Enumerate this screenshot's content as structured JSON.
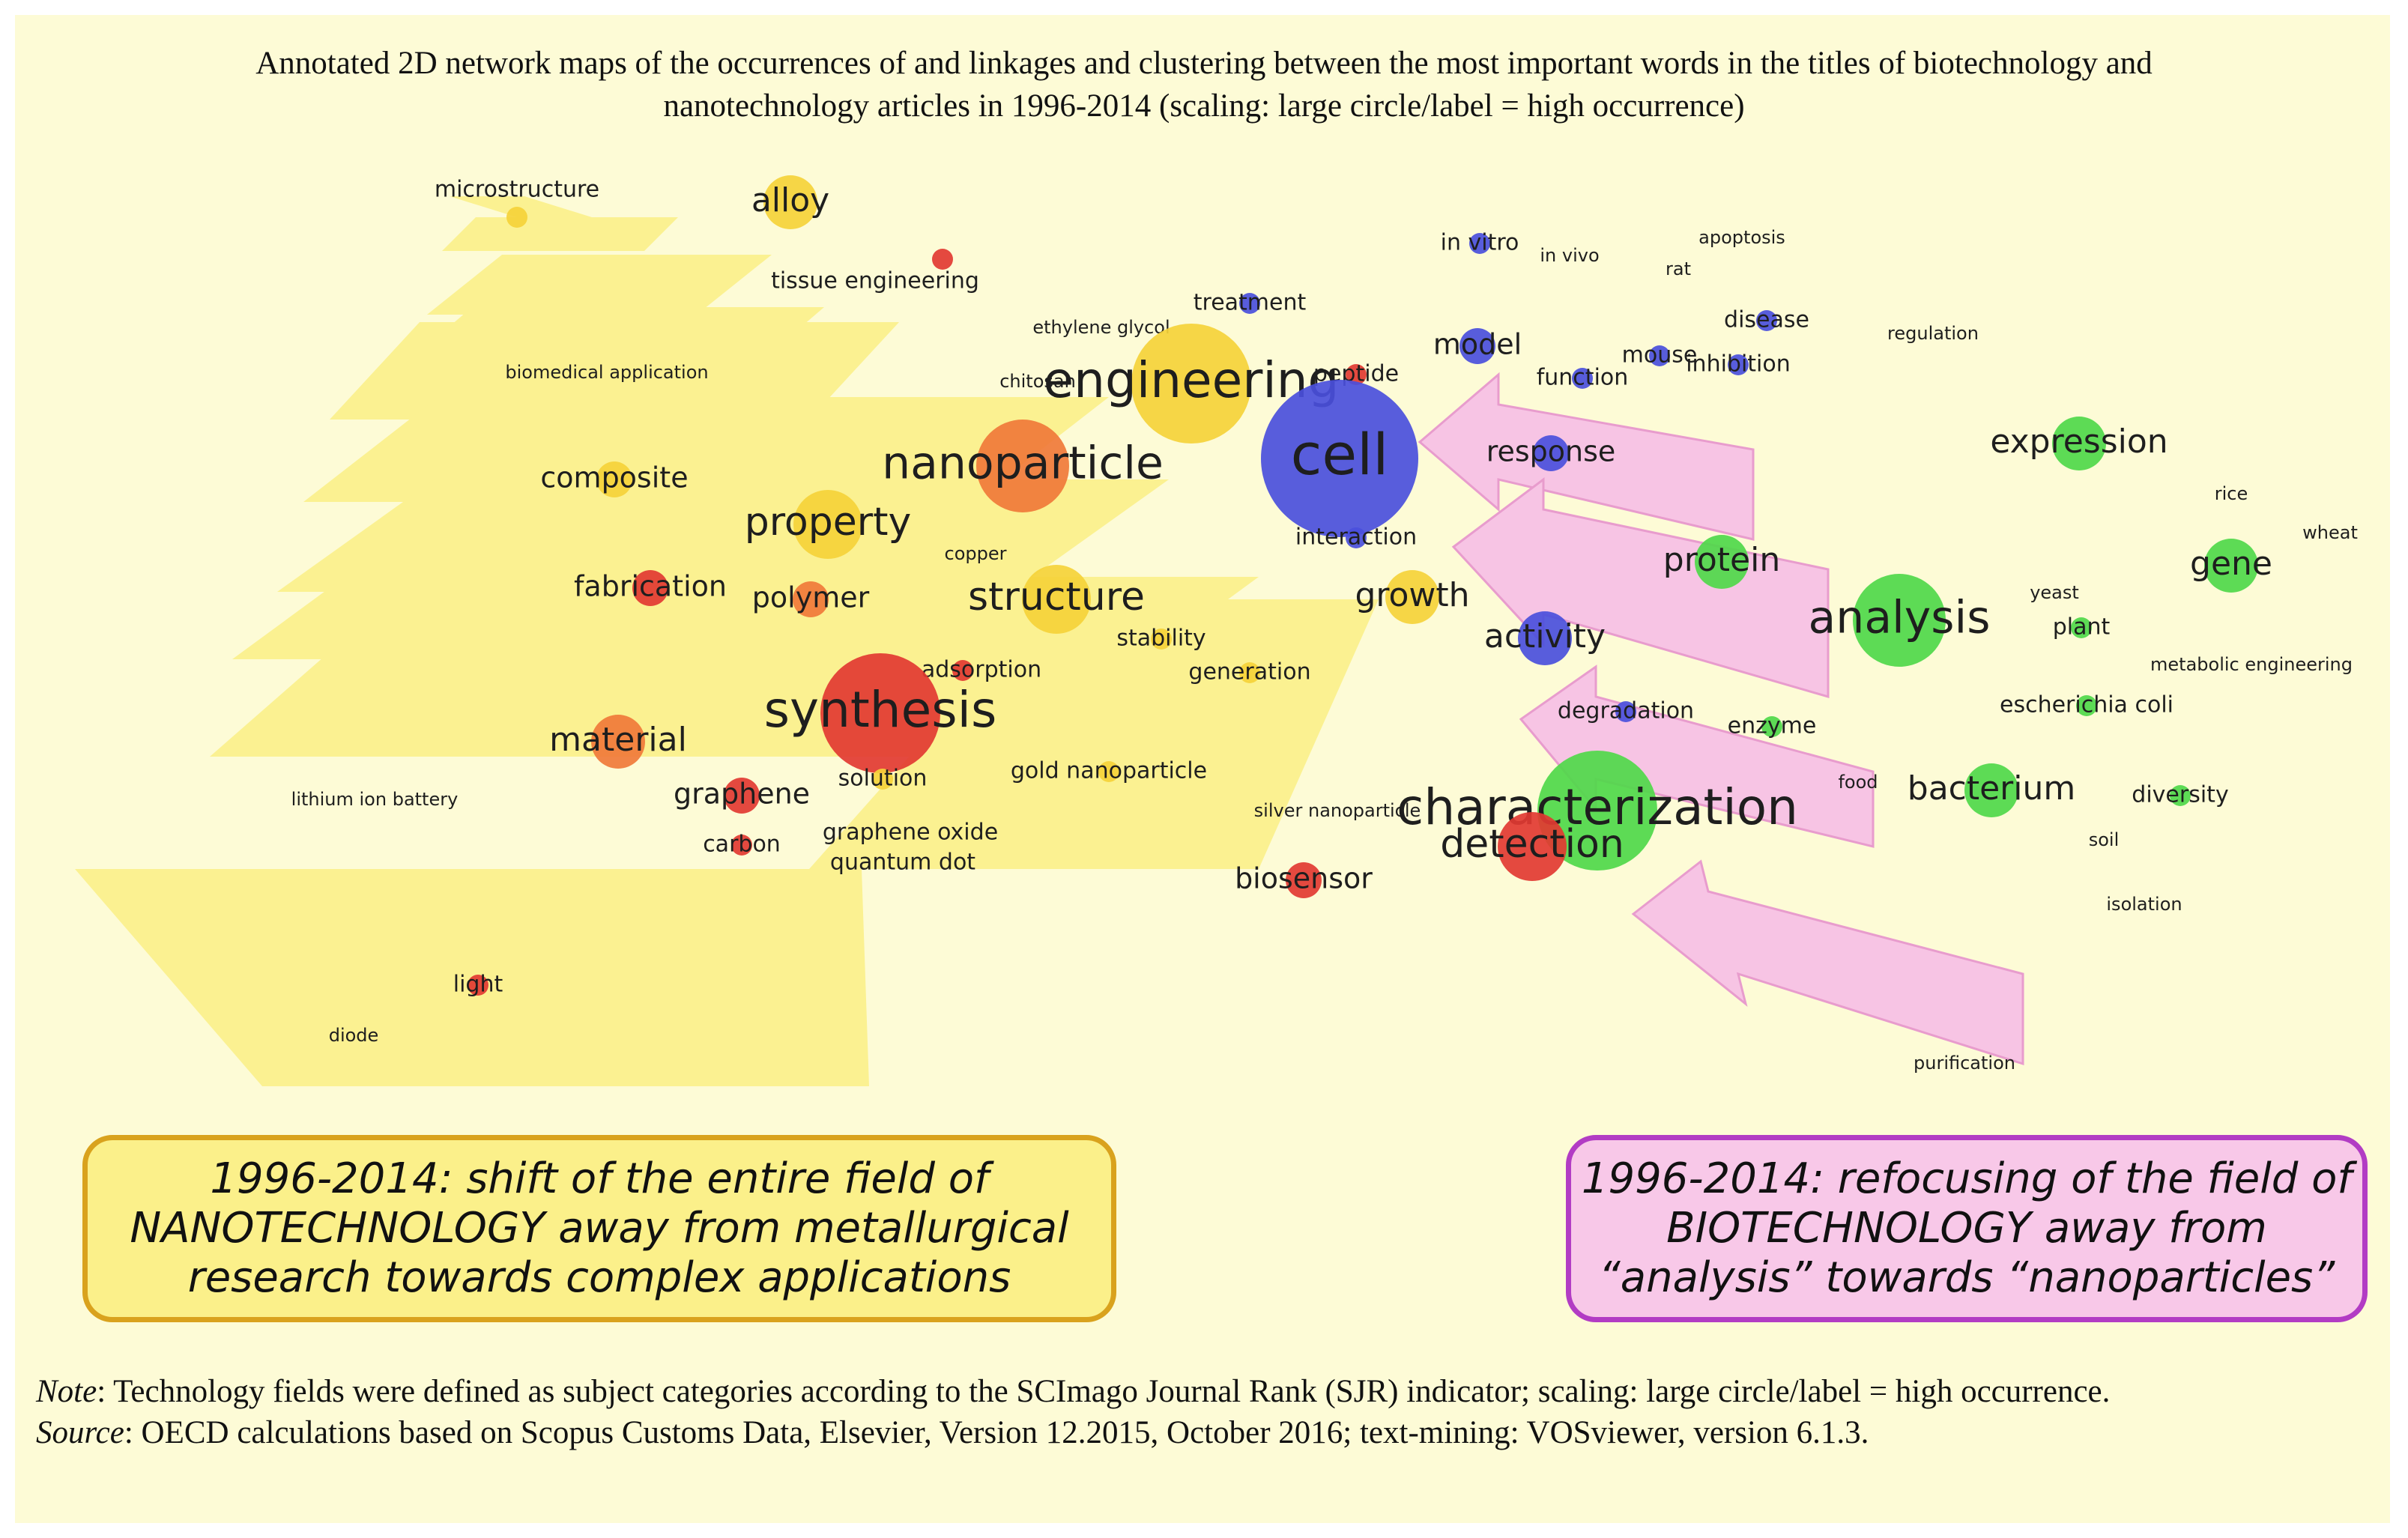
{
  "title": {
    "line1": "Annotated 2D network maps of the occurrences of and linkages and clustering between the most important words in the titles of biotechnology and",
    "line2": "nanotechnology articles in 1996-2014 (scaling: large circle/label = high occurrence)"
  },
  "colors": {
    "red": "#e23a32",
    "orange": "#f07a3a",
    "yellow": "#f5d23a",
    "green": "#4fd84a",
    "blue": "#4a4fdc",
    "magenta": "#b020a0",
    "yellow_band": "#fbf08a",
    "pink_arrow": "#f7c4e4"
  },
  "network": {
    "nodes": [
      {
        "label": "microstructure",
        "color": "yellow",
        "size": 1
      },
      {
        "label": "alloy",
        "color": "yellow",
        "size": 3
      },
      {
        "label": "tissue engineering",
        "color": "red",
        "size": 1
      },
      {
        "label": "biomedical application",
        "color": "yellow",
        "size": 0
      },
      {
        "label": "composite",
        "color": "yellow",
        "size": 2
      },
      {
        "label": "fabrication",
        "color": "red",
        "size": 2
      },
      {
        "label": "property",
        "color": "yellow",
        "size": 4
      },
      {
        "label": "polymer",
        "color": "orange",
        "size": 2
      },
      {
        "label": "copper",
        "color": "yellow",
        "size": 0
      },
      {
        "label": "nanoparticle",
        "color": "orange",
        "size": 5
      },
      {
        "label": "ethylene glycol",
        "color": "yellow",
        "size": 0
      },
      {
        "label": "chitosan",
        "color": "yellow",
        "size": 0
      },
      {
        "label": "engineering",
        "color": "yellow",
        "size": 6
      },
      {
        "label": "treatment",
        "color": "blue",
        "size": 1
      },
      {
        "label": "peptide",
        "color": "red",
        "size": 1
      },
      {
        "label": "cell",
        "color": "blue",
        "size": 7
      },
      {
        "label": "interaction",
        "color": "blue",
        "size": 1
      },
      {
        "label": "structure",
        "color": "yellow",
        "size": 4
      },
      {
        "label": "stability",
        "color": "yellow",
        "size": 1
      },
      {
        "label": "generation",
        "color": "yellow",
        "size": 1
      },
      {
        "label": "adsorption",
        "color": "red",
        "size": 1
      },
      {
        "label": "synthesis",
        "color": "red",
        "size": 6
      },
      {
        "label": "solution",
        "color": "yellow",
        "size": 1
      },
      {
        "label": "material",
        "color": "orange",
        "size": 3
      },
      {
        "label": "graphene",
        "color": "red",
        "size": 2
      },
      {
        "label": "carbon",
        "color": "red",
        "size": 1
      },
      {
        "label": "lithium ion battery",
        "color": "yellow",
        "size": 0
      },
      {
        "label": "graphene oxide",
        "color": "yellow",
        "size": 1
      },
      {
        "label": "quantum dot",
        "color": "yellow",
        "size": 1
      },
      {
        "label": "gold nanoparticle",
        "color": "yellow",
        "size": 1
      },
      {
        "label": "growth",
        "color": "yellow",
        "size": 3
      },
      {
        "label": "light",
        "color": "red",
        "size": 1
      },
      {
        "label": "diode",
        "color": "yellow",
        "size": 0
      },
      {
        "label": "in vitro",
        "color": "blue",
        "size": 1
      },
      {
        "label": "in vivo",
        "color": "blue",
        "size": 0
      },
      {
        "label": "apoptosis",
        "color": "blue",
        "size": 0
      },
      {
        "label": "rat",
        "color": "blue",
        "size": 0
      },
      {
        "label": "disease",
        "color": "blue",
        "size": 1
      },
      {
        "label": "regulation",
        "color": "green",
        "size": 0
      },
      {
        "label": "model",
        "color": "blue",
        "size": 2
      },
      {
        "label": "function",
        "color": "blue",
        "size": 1
      },
      {
        "label": "mouse",
        "color": "blue",
        "size": 1
      },
      {
        "label": "inhibition",
        "color": "blue",
        "size": 1
      },
      {
        "label": "response",
        "color": "blue",
        "size": 2
      },
      {
        "label": "expression",
        "color": "green",
        "size": 3
      },
      {
        "label": "rice",
        "color": "green",
        "size": 0
      },
      {
        "label": "wheat",
        "color": "green",
        "size": 0
      },
      {
        "label": "gene",
        "color": "green",
        "size": 3
      },
      {
        "label": "protein",
        "color": "green",
        "size": 3
      },
      {
        "label": "analysis",
        "color": "green",
        "size": 5
      },
      {
        "label": "yeast",
        "color": "green",
        "size": 0
      },
      {
        "label": "plant",
        "color": "green",
        "size": 1
      },
      {
        "label": "metabolic engineering",
        "color": "green",
        "size": 0
      },
      {
        "label": "activity",
        "color": "blue",
        "size": 3
      },
      {
        "label": "degradation",
        "color": "blue",
        "size": 1
      },
      {
        "label": "enzyme",
        "color": "green",
        "size": 1
      },
      {
        "label": "escherichia coli",
        "color": "green",
        "size": 1
      },
      {
        "label": "food",
        "color": "green",
        "size": 0
      },
      {
        "label": "bacterium",
        "color": "green",
        "size": 3
      },
      {
        "label": "diversity",
        "color": "green",
        "size": 1
      },
      {
        "label": "soil",
        "color": "green",
        "size": 0
      },
      {
        "label": "isolation",
        "color": "green",
        "size": 0
      },
      {
        "label": "silver nanoparticle",
        "color": "red",
        "size": 0
      },
      {
        "label": "characterization",
        "color": "green",
        "size": 6
      },
      {
        "label": "detection",
        "color": "red",
        "size": 4
      },
      {
        "label": "biosensor",
        "color": "red",
        "size": 2
      },
      {
        "label": "purification",
        "color": "green",
        "size": 0
      }
    ]
  },
  "boxes": {
    "nano": {
      "line1": "1996-2014: shift of the entire field of",
      "line2": "NANOTECHNOLOGY away from metallurgical",
      "line3": "research towards complex applications"
    },
    "bio": {
      "line1": "1996-2014: refocusing of the field of",
      "line2": "BIOTECHNOLOGY away from",
      "line3": "“analysis” towards “nanoparticles”"
    }
  },
  "notes": {
    "note_label": "Note",
    "note_text": ": Technology fields were defined as subject categories according to the SCImago Journal Rank (SJR) indicator; scaling: large circle/label = high occurrence.",
    "source_label": "Source",
    "source_text": ": OECD calculations based on Scopus Customs Data, Elsevier, Version 12.2015, October 2016; text-mining: VOSviewer, version 6.1.3."
  }
}
